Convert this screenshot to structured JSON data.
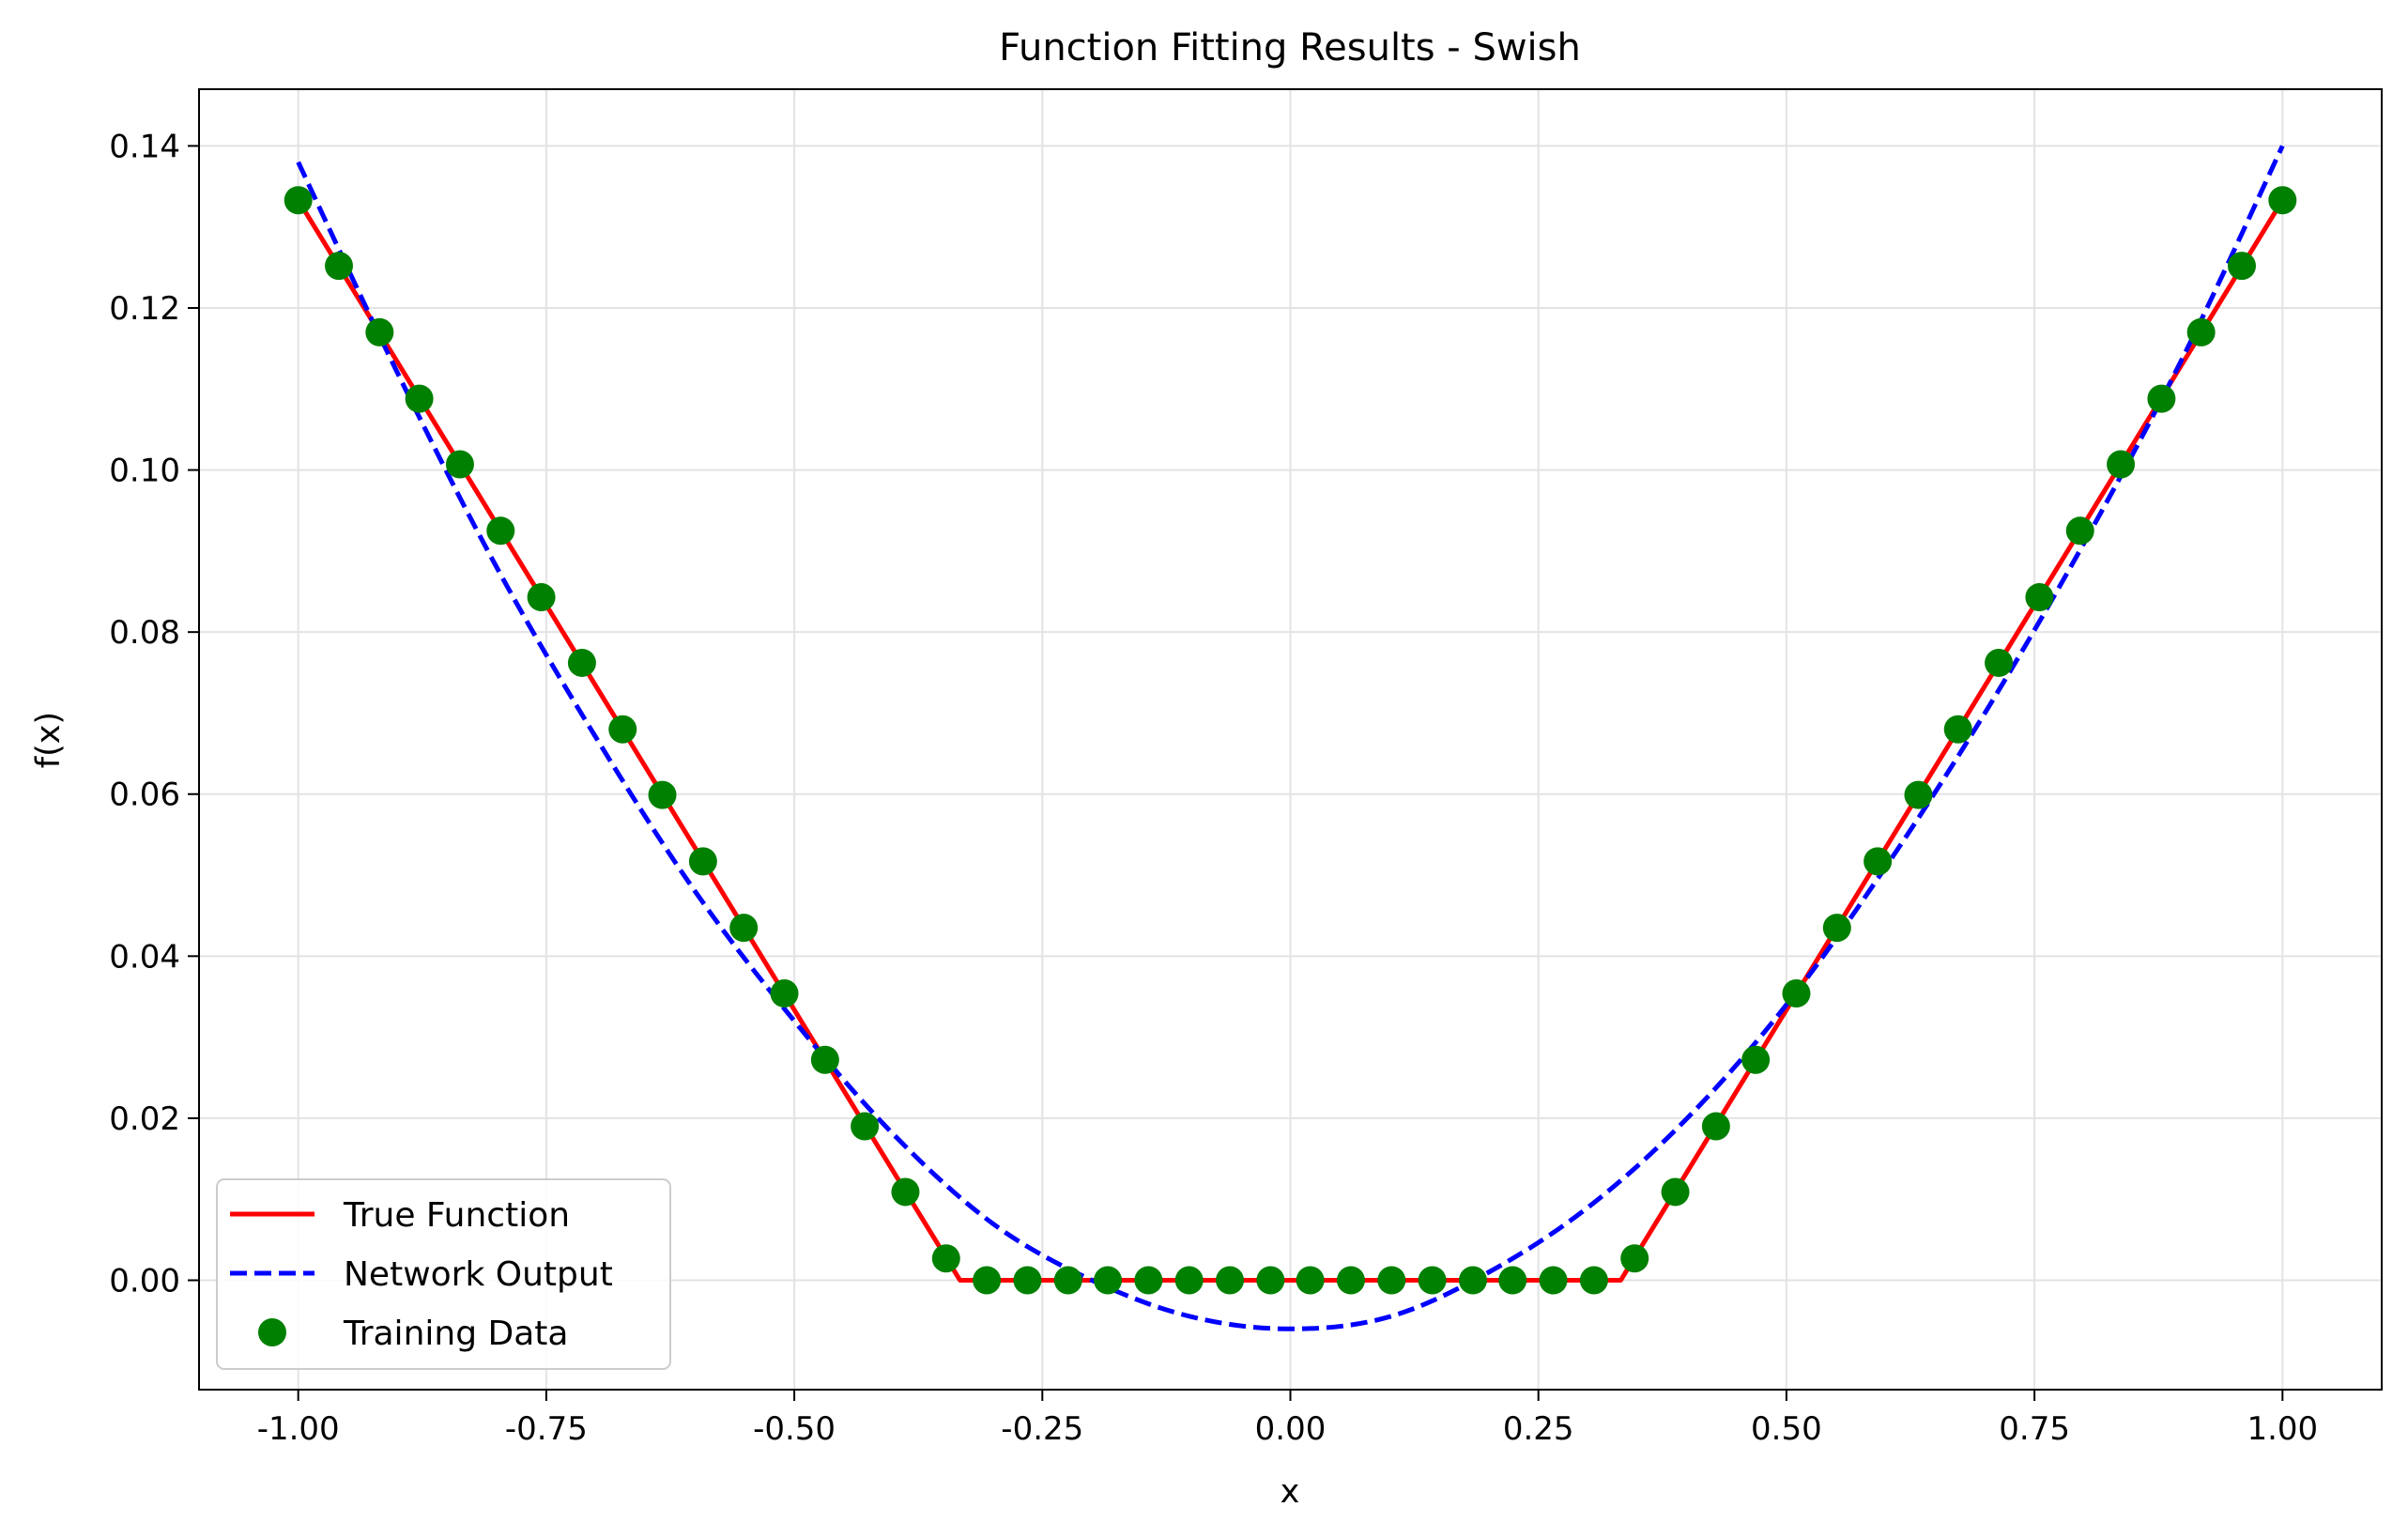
{
  "chart_data": {
    "type": "line",
    "title": "Function Fitting Results - Swish",
    "xlabel": "x",
    "ylabel": "f(x)",
    "xlim": [
      -1.1,
      1.1
    ],
    "ylim": [
      -0.0135,
      0.147
    ],
    "x_ticks": [
      -1.0,
      -0.75,
      -0.5,
      -0.25,
      0.0,
      0.25,
      0.5,
      0.75,
      1.0
    ],
    "x_tick_labels": [
      "-1.00",
      "-0.75",
      "-0.50",
      "-0.25",
      "0.00",
      "0.25",
      "0.50",
      "0.75",
      "1.00"
    ],
    "y_ticks": [
      0.0,
      0.02,
      0.04,
      0.06,
      0.08,
      0.1,
      0.12,
      0.14
    ],
    "y_tick_labels": [
      "0.00",
      "0.02",
      "0.04",
      "0.06",
      "0.08",
      "0.10",
      "0.12",
      "0.14"
    ],
    "grid": true,
    "legend_position": "lower-left",
    "series": [
      {
        "name": "True Function",
        "style": "solid",
        "color": "#ff0000",
        "x": [
          -1.0,
          -0.333,
          0.333,
          1.0
        ],
        "y": [
          0.1333,
          0.0,
          0.0,
          0.1333
        ]
      },
      {
        "name": "Network Output",
        "style": "dashed",
        "color": "#0000ff",
        "x": [
          -1.0,
          -0.9,
          -0.8,
          -0.7,
          -0.6,
          -0.5,
          -0.4,
          -0.3,
          -0.2,
          -0.1,
          0.0,
          0.1,
          0.2,
          0.3,
          0.4,
          0.5,
          0.6,
          0.7,
          0.8,
          0.9,
          1.0
        ],
        "y": [
          0.138,
          0.112,
          0.088,
          0.067,
          0.048,
          0.032,
          0.018,
          0.007,
          0.0,
          -0.0045,
          -0.006,
          -0.0045,
          0.001,
          0.009,
          0.02,
          0.034,
          0.051,
          0.07,
          0.091,
          0.114,
          0.14
        ]
      },
      {
        "name": "Training Data",
        "style": "scatter",
        "color": "#008000",
        "x": [
          -1.0,
          -0.959,
          -0.918,
          -0.878,
          -0.837,
          -0.796,
          -0.755,
          -0.714,
          -0.673,
          -0.633,
          -0.592,
          -0.551,
          -0.51,
          -0.469,
          -0.429,
          -0.388,
          -0.347,
          -0.306,
          -0.265,
          -0.224,
          -0.184,
          -0.143,
          -0.102,
          -0.061,
          -0.02,
          0.02,
          0.061,
          0.102,
          0.143,
          0.184,
          0.224,
          0.265,
          0.306,
          0.347,
          0.388,
          0.429,
          0.469,
          0.51,
          0.551,
          0.592,
          0.633,
          0.673,
          0.714,
          0.755,
          0.796,
          0.837,
          0.878,
          0.918,
          0.959,
          1.0
        ],
        "y": [
          0.1333,
          0.1252,
          0.117,
          0.1088,
          0.1007,
          0.0925,
          0.0843,
          0.0762,
          0.068,
          0.0599,
          0.0517,
          0.0435,
          0.0354,
          0.0272,
          0.019,
          0.0109,
          0.0027,
          0.0,
          0.0,
          0.0,
          0.0,
          0.0,
          0.0,
          0.0,
          0.0,
          0.0,
          0.0,
          0.0,
          0.0,
          0.0,
          0.0,
          0.0,
          0.0,
          0.0027,
          0.0109,
          0.019,
          0.0272,
          0.0354,
          0.0435,
          0.0517,
          0.0599,
          0.068,
          0.0762,
          0.0843,
          0.0925,
          0.1007,
          0.1088,
          0.117,
          0.1252,
          0.1333
        ]
      }
    ]
  }
}
